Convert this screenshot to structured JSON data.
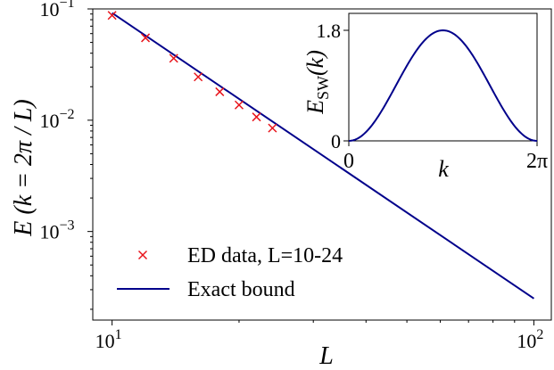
{
  "chart_data": [
    {
      "type": "scatter",
      "xscale": "log",
      "yscale": "log",
      "xlim": [
        9,
        110
      ],
      "ylim": [
        0.00016,
        0.1
      ],
      "xlabel": "L",
      "ylabel": "E (k = 2π / L)",
      "x_ticks": [
        {
          "value": 10,
          "base": "10",
          "exp": "1"
        },
        {
          "value": 100,
          "base": "10",
          "exp": "2"
        }
      ],
      "y_ticks": [
        {
          "value": 0.1,
          "base": "10",
          "exp": "−1"
        },
        {
          "value": 0.01,
          "base": "10",
          "exp": "−2"
        },
        {
          "value": 0.001,
          "base": "10",
          "exp": "−3"
        }
      ],
      "series": [
        {
          "name": "ED data, L=10-24",
          "kind": "scatter",
          "marker": "x",
          "color": "#e8141b",
          "x": [
            10,
            12,
            14,
            16,
            18,
            20,
            22,
            24
          ],
          "y": [
            0.0875,
            0.055,
            0.036,
            0.0245,
            0.018,
            0.0137,
            0.0107,
            0.0085
          ]
        },
        {
          "name": "Exact bound",
          "kind": "line",
          "color": "#00008b",
          "x": [
            10,
            100
          ],
          "y": [
            0.092,
            0.00025
          ]
        }
      ],
      "legend": {
        "placement": "lower-left"
      }
    },
    {
      "type": "line",
      "inset": true,
      "xlabel": "k",
      "ylabel_main": "E",
      "ylabel_sub": "SW",
      "ylabel_arg": "(k)",
      "xlim": [
        0,
        6.2832
      ],
      "ylim": [
        0,
        1.8
      ],
      "x_ticks": [
        {
          "value": 0,
          "label": "0"
        },
        {
          "value": 6.2832,
          "label": "2π"
        }
      ],
      "y_ticks": [
        {
          "value": 0,
          "label": "0"
        },
        {
          "value": 1.8,
          "label": "1.8"
        }
      ],
      "function": "0.9*(1-cos(k))",
      "color": "#00008b"
    }
  ]
}
